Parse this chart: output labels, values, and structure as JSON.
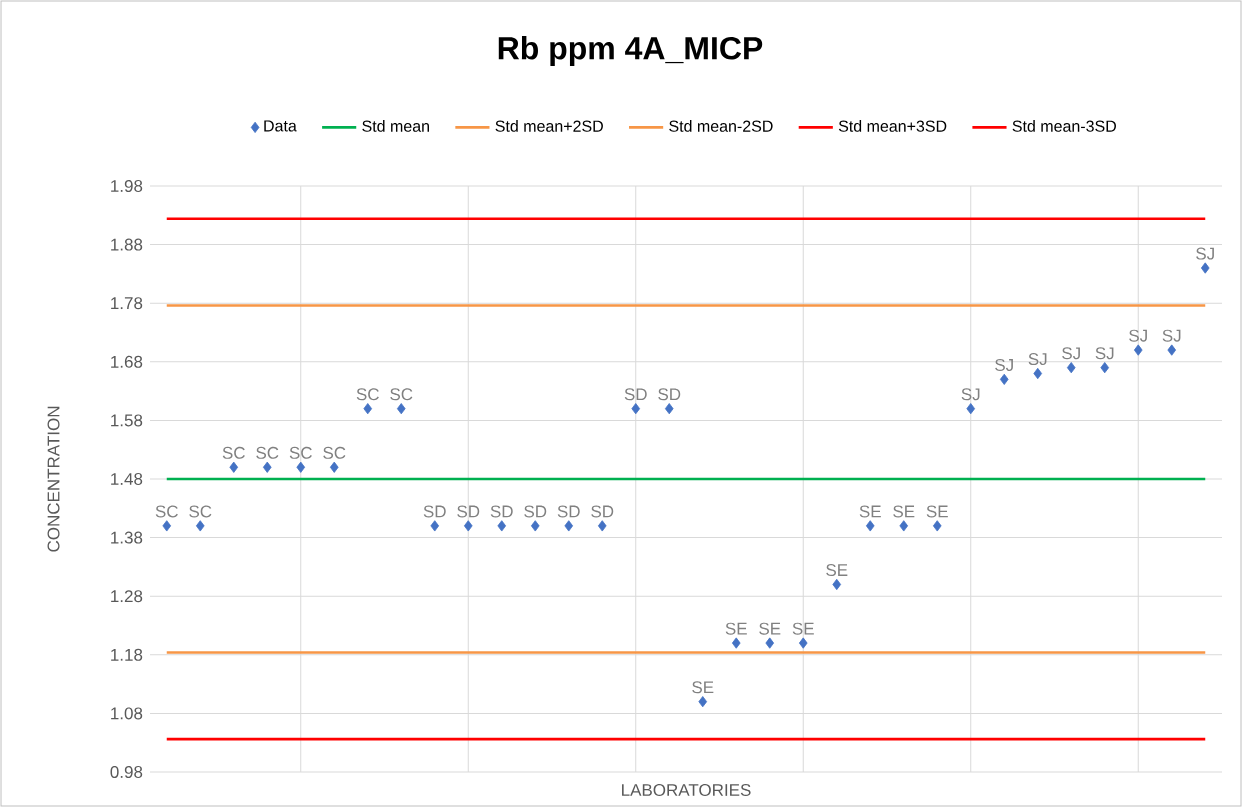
{
  "chart_data": {
    "type": "scatter",
    "title": "Rb ppm 4A_MICP",
    "xlabel": "LABORATORIES",
    "ylabel": "CONCENTRATION",
    "categories": [
      null,
      null,
      null,
      null,
      null,
      null,
      null,
      null,
      null,
      null,
      null,
      null,
      null,
      null,
      null,
      null,
      null,
      null,
      null,
      null,
      null,
      null,
      null,
      null,
      null,
      null,
      null,
      null,
      null,
      null,
      null,
      null
    ],
    "ylim": [
      0.98,
      1.98
    ],
    "yticks": [
      0.98,
      1.08,
      1.18,
      1.28,
      1.38,
      1.48,
      1.58,
      1.68,
      1.78,
      1.88,
      1.98
    ],
    "grid": true,
    "legend": "top",
    "marker": "diamond",
    "series": [
      {
        "name": "Data",
        "color": "#4472c4",
        "values": [
          1.4,
          1.4,
          1.5,
          1.5,
          1.5,
          1.5,
          1.6,
          1.6,
          1.4,
          1.4,
          1.4,
          1.4,
          1.4,
          1.4,
          1.6,
          1.6,
          1.1,
          1.2,
          1.2,
          1.2,
          1.3,
          1.4,
          1.4,
          1.4,
          1.6,
          1.65,
          1.66,
          1.67,
          1.67,
          1.7,
          1.7,
          1.84
        ],
        "value_labels": [
          "SC",
          "SC",
          "SC",
          "SC",
          "SC",
          "SC",
          "SC",
          "SC",
          "SD",
          "SD",
          "SD",
          "SD",
          "SD",
          "SD",
          "SD",
          "SD",
          "SE",
          "SE",
          "SE",
          "SE",
          "SE",
          "SE",
          "SE",
          "SE",
          "SJ",
          "SJ",
          "SJ",
          "SJ",
          "SJ",
          "SJ",
          "SJ",
          "SJ"
        ]
      },
      {
        "name": "Std mean",
        "type": "line",
        "marker": "none",
        "color": "#00b050",
        "values": [
          1.48,
          1.48,
          1.48,
          1.48,
          1.48,
          1.48,
          1.48,
          1.48,
          1.48,
          1.48,
          1.48,
          1.48,
          1.48,
          1.48,
          1.48,
          1.48,
          1.48,
          1.48,
          1.48,
          1.48,
          1.48,
          1.48,
          1.48,
          1.48,
          1.48,
          1.48,
          1.48,
          1.48,
          1.48,
          1.48,
          1.48,
          1.48
        ]
      },
      {
        "name": "Std mean+2SD",
        "type": "line",
        "marker": "none",
        "color": "#f79646",
        "values": [
          1.776,
          1.776,
          1.776,
          1.776,
          1.776,
          1.776,
          1.776,
          1.776,
          1.776,
          1.776,
          1.776,
          1.776,
          1.776,
          1.776,
          1.776,
          1.776,
          1.776,
          1.776,
          1.776,
          1.776,
          1.776,
          1.776,
          1.776,
          1.776,
          1.776,
          1.776,
          1.776,
          1.776,
          1.776,
          1.776,
          1.776,
          1.776
        ]
      },
      {
        "name": "Std mean-2SD",
        "type": "line",
        "marker": "none",
        "color": "#f79646",
        "values": [
          1.184,
          1.184,
          1.184,
          1.184,
          1.184,
          1.184,
          1.184,
          1.184,
          1.184,
          1.184,
          1.184,
          1.184,
          1.184,
          1.184,
          1.184,
          1.184,
          1.184,
          1.184,
          1.184,
          1.184,
          1.184,
          1.184,
          1.184,
          1.184,
          1.184,
          1.184,
          1.184,
          1.184,
          1.184,
          1.184,
          1.184,
          1.184
        ]
      },
      {
        "name": "Std mean+3SD",
        "type": "line",
        "marker": "none",
        "color": "#ff0000",
        "values": [
          1.924,
          1.924,
          1.924,
          1.924,
          1.924,
          1.924,
          1.924,
          1.924,
          1.924,
          1.924,
          1.924,
          1.924,
          1.924,
          1.924,
          1.924,
          1.924,
          1.924,
          1.924,
          1.924,
          1.924,
          1.924,
          1.924,
          1.924,
          1.924,
          1.924,
          1.924,
          1.924,
          1.924,
          1.924,
          1.924,
          1.924,
          1.924
        ]
      },
      {
        "name": "Std mean-3SD",
        "type": "line",
        "marker": "none",
        "color": "#ff0000",
        "values": [
          1.036,
          1.036,
          1.036,
          1.036,
          1.036,
          1.036,
          1.036,
          1.036,
          1.036,
          1.036,
          1.036,
          1.036,
          1.036,
          1.036,
          1.036,
          1.036,
          1.036,
          1.036,
          1.036,
          1.036,
          1.036,
          1.036,
          1.036,
          1.036,
          1.036,
          1.036,
          1.036,
          1.036,
          1.036,
          1.036,
          1.036,
          1.036
        ]
      }
    ]
  }
}
